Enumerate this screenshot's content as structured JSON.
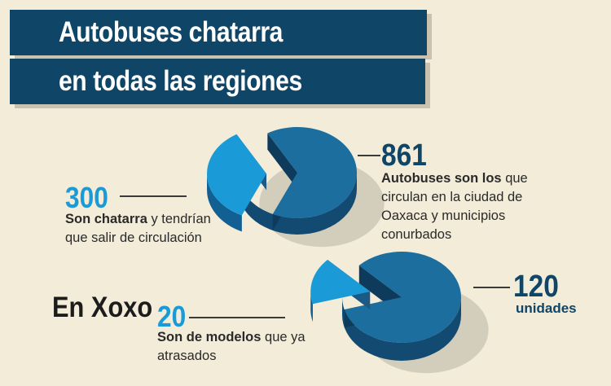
{
  "header": {
    "title_line1": "Autobuses chatarra",
    "title_line2": "en todas las regiones"
  },
  "chart_data": [
    {
      "type": "pie",
      "slices": [
        {
          "label": "300",
          "value": 300,
          "color": "#1a9ad6",
          "exploded": true
        },
        {
          "label": "861",
          "value": 561,
          "color": "#1c6e9f"
        }
      ],
      "total": 861,
      "annotations": {
        "total_number": "861",
        "total_desc_bold": "Autobuses son los",
        "total_desc_rest": " que circulan en la ciudad de Oaxaca y municipios conurbados",
        "part_number": "300",
        "part_desc_bold": "Son chatarra",
        "part_desc_rest": " y tendrían que salir de circulación"
      }
    },
    {
      "type": "pie",
      "title": "En Xoxo",
      "slices": [
        {
          "label": "20",
          "value": 20,
          "color": "#1a9ad6",
          "exploded": true
        },
        {
          "label": "120",
          "value": 100,
          "color": "#1c6e9f"
        }
      ],
      "total": 120,
      "annotations": {
        "total_number": "120",
        "total_unit": "unidades",
        "part_number": "20",
        "part_desc_bold": "Son de modelos",
        "part_desc_rest": " que ya atrasados"
      }
    }
  ],
  "colors": {
    "dark_blue": "#0f4567",
    "pie_top": "#1c6e9f",
    "pie_side": "#124a72",
    "light_blue": "#1a9ad6",
    "light_blue_side": "#115f93",
    "background": "#f3ecd9",
    "shadow": "#d3cdbc"
  }
}
